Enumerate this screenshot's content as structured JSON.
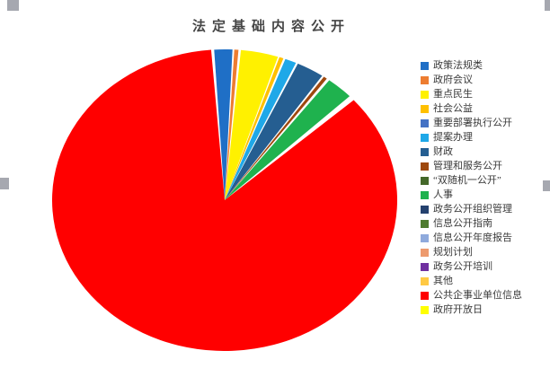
{
  "chart_data": {
    "type": "pie",
    "title": "法定基础内容公开",
    "legend_position": "right",
    "background": "#ffffff",
    "selection_handle_color": "#a6a8b0",
    "slices": [
      {
        "label": "政策法规类",
        "color": "#1F6FC6",
        "start_angle": -3.5,
        "end_angle": 2.6,
        "approx_percent": 1.7
      },
      {
        "label": "政府会议",
        "color": "#ED7D31",
        "start_angle": 3.2,
        "end_angle": 4.6,
        "approx_percent": 0.4
      },
      {
        "label": "重点民生",
        "color": "#FFF100",
        "start_angle": 5.4,
        "end_angle": 18.0,
        "approx_percent": 3.5
      },
      {
        "label": "社会公益",
        "color": "#FFC000",
        "start_angle": 18.5,
        "end_angle": 19.9,
        "approx_percent": 0.4
      },
      {
        "label": "重要部署执行公开",
        "color": "#4472C4",
        "start_angle": 20.0,
        "end_angle": 20.0,
        "approx_percent": 0.0
      },
      {
        "label": "提案办理",
        "color": "#1FA8E8",
        "start_angle": 20.6,
        "end_angle": 24.4,
        "approx_percent": 1.1
      },
      {
        "label": "财政",
        "color": "#255E91",
        "start_angle": 25.1,
        "end_angle": 34.4,
        "approx_percent": 2.6
      },
      {
        "label": "管理和服务公开",
        "color": "#9E480E",
        "start_angle": 35.1,
        "end_angle": 36.3,
        "approx_percent": 0.3
      },
      {
        "label": "“双随机一公开”",
        "color": "#44682A",
        "start_angle": 36.4,
        "end_angle": 36.4,
        "approx_percent": 0.0
      },
      {
        "label": "人事",
        "color": "#1FB24E",
        "start_angle": 37.3,
        "end_angle": 46.4,
        "approx_percent": 2.5
      },
      {
        "label": "政务公开组织管理",
        "color": "#24416E",
        "start_angle": 46.5,
        "end_angle": 46.5,
        "approx_percent": 0.0
      },
      {
        "label": "信息公开指南",
        "color": "#4E7B2F",
        "start_angle": 46.6,
        "end_angle": 46.6,
        "approx_percent": 0.0
      },
      {
        "label": "信息公开年度报告",
        "color": "#8FAADC",
        "start_angle": 46.7,
        "end_angle": 46.7,
        "approx_percent": 0.0
      },
      {
        "label": "规划计划",
        "color": "#ED9A6E",
        "start_angle": 46.8,
        "end_angle": 46.8,
        "approx_percent": 0.0
      },
      {
        "label": "政务公开培训",
        "color": "#7030A0",
        "start_angle": 46.9,
        "end_angle": 46.9,
        "approx_percent": 0.0
      },
      {
        "label": "其他",
        "color": "#FFC943",
        "start_angle": 47.0,
        "end_angle": 47.0,
        "approx_percent": 0.0
      },
      {
        "label": "公共企事业单位信息",
        "color": "#FF0000",
        "start_angle": 48.4,
        "end_angle": 355.5,
        "approx_percent": 85.3
      },
      {
        "label": "政府开放日",
        "color": "#FFFF00",
        "start_angle": 355.6,
        "end_angle": 355.6,
        "approx_percent": 0.0
      }
    ]
  }
}
